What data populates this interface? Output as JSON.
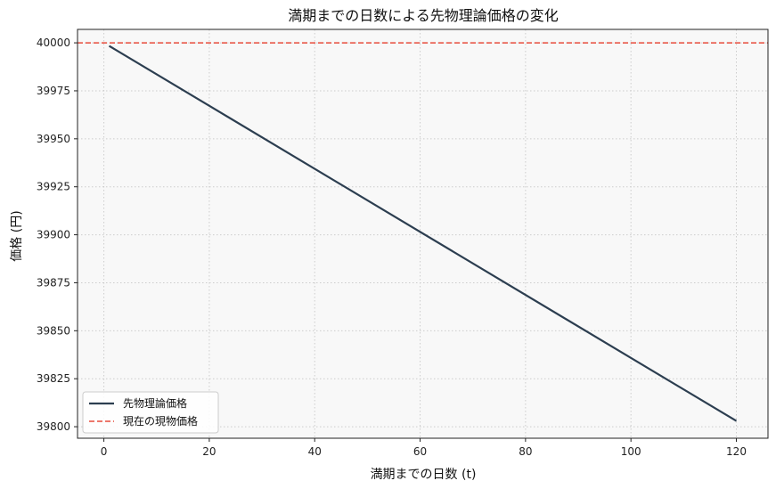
{
  "chart_data": {
    "type": "line",
    "title": "満期までの日数による先物理論価格の変化",
    "xlabel": "満期までの日数 (t)",
    "ylabel": "価格 (円)",
    "xlim": [
      -5,
      126
    ],
    "ylim": [
      39794,
      40007
    ],
    "xticks": [
      0,
      20,
      40,
      60,
      80,
      100,
      120
    ],
    "yticks": [
      39800,
      39825,
      39850,
      39875,
      39900,
      39925,
      39950,
      39975,
      40000
    ],
    "grid": true,
    "legend_position": "lower-left",
    "series": [
      {
        "name": "先物理論価格",
        "color": "#2c3e50",
        "style": "solid",
        "x": [
          1,
          120
        ],
        "y": [
          39998.4,
          39803.0
        ]
      },
      {
        "name": "現在の現物価格",
        "color": "#e74c3c",
        "style": "dashed",
        "hline": 40000
      }
    ]
  }
}
